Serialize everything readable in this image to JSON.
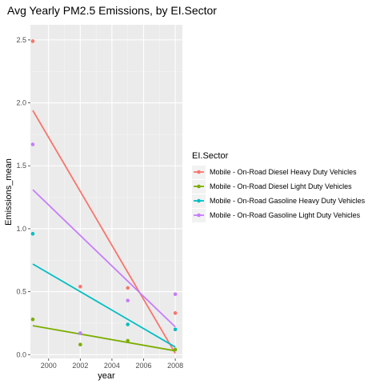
{
  "chart_data": {
    "type": "scatter",
    "title": "Avg Yearly PM2.5 Emissions, by EI.Sector",
    "xlabel": "year",
    "ylabel": "Emissions_mean",
    "xlim": [
      1998.85,
      2008.45
    ],
    "ylim": [
      -0.03,
      2.62
    ],
    "x_ticks": [
      2000,
      2002,
      2004,
      2006,
      2008
    ],
    "y_ticks": [
      0.0,
      0.5,
      1.0,
      1.5,
      2.0,
      2.5
    ],
    "x_tick_labels": [
      "2000",
      "2002",
      "2004",
      "2006",
      "2008"
    ],
    "y_tick_labels": [
      "0.0",
      "0.5",
      "1.0",
      "1.5",
      "2.0",
      "2.5"
    ],
    "grid": true,
    "legend": {
      "title": "EI.Sector",
      "placement": "right"
    },
    "series": [
      {
        "name": "Mobile - On-Road Diesel Heavy Duty Vehicles",
        "color": "#F8766D",
        "points": [
          {
            "x": 1999,
            "y": 2.49
          },
          {
            "x": 2002,
            "y": 0.54
          },
          {
            "x": 2005,
            "y": 0.53
          },
          {
            "x": 2008,
            "y": 0.33
          }
        ],
        "fit": [
          {
            "x": 1999,
            "y": 1.94
          },
          {
            "x": 2008,
            "y": 0.01
          }
        ]
      },
      {
        "name": "Mobile - On-Road Diesel Light Duty Vehicles",
        "color": "#7CAE00",
        "points": [
          {
            "x": 1999,
            "y": 0.28
          },
          {
            "x": 2002,
            "y": 0.08
          },
          {
            "x": 2005,
            "y": 0.11
          },
          {
            "x": 2008,
            "y": 0.04
          }
        ],
        "fit": [
          {
            "x": 1999,
            "y": 0.23
          },
          {
            "x": 2008,
            "y": 0.03
          }
        ]
      },
      {
        "name": "Mobile - On-Road Gasoline Heavy Duty Vehicles",
        "color": "#00BFC4",
        "points": [
          {
            "x": 1999,
            "y": 0.96
          },
          {
            "x": 2002,
            "y": 0.17
          },
          {
            "x": 2005,
            "y": 0.24
          },
          {
            "x": 2008,
            "y": 0.2
          }
        ],
        "fit": [
          {
            "x": 1999,
            "y": 0.72
          },
          {
            "x": 2008,
            "y": 0.06
          }
        ]
      },
      {
        "name": "Mobile - On-Road Gasoline Light Duty Vehicles",
        "color": "#C77CFF",
        "points": [
          {
            "x": 1999,
            "y": 1.67
          },
          {
            "x": 2002,
            "y": 0.17
          },
          {
            "x": 2005,
            "y": 0.43
          },
          {
            "x": 2008,
            "y": 0.48
          }
        ],
        "fit": [
          {
            "x": 1999,
            "y": 1.31
          },
          {
            "x": 2008,
            "y": 0.22
          }
        ]
      }
    ]
  }
}
